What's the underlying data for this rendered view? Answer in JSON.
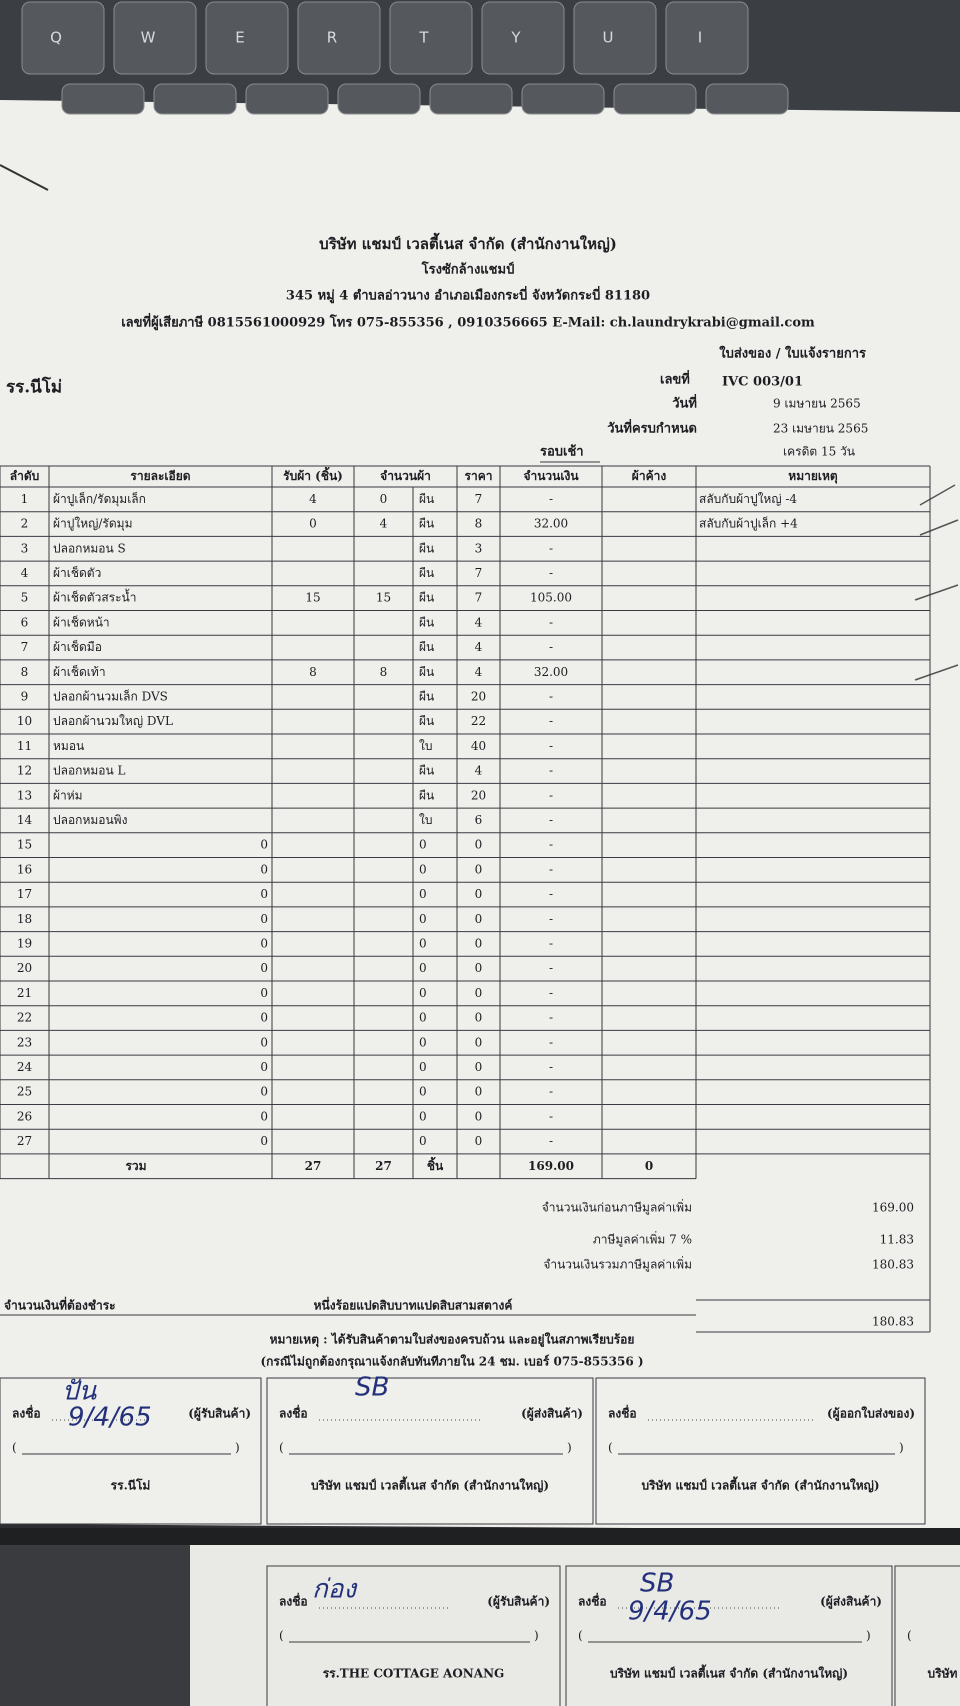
{
  "keyboard": [
    "Q",
    "W",
    "E",
    "R",
    "T",
    "Y",
    "U",
    "I"
  ],
  "header": {
    "company": "บริษัท แชมป์ เวลตี้เนส จำกัด (สำนักงานใหญ่)",
    "plant": "โรงซักล้างแชมป์",
    "address": "345 หมู่ 4 ตำบลอ่าวนาง อำเภอเมืองกระบี่ จังหวัดกระบี่ 81180",
    "contact": "เลขที่ผู้เสียภาษี 0815561000929 โทร 075-855356 , 0910356665 E-Mail: ch.laundrykrabi@gmail.com",
    "doc_type": "ใบส่งของ / ใบแจ้งรายการ"
  },
  "customer": "รร.นีโม่",
  "info": {
    "number_label": "เลขที่",
    "number": "IVC 003/01",
    "date_label": "วันที่",
    "date": "9 เมษายน 2565",
    "due_label": "วันที่ครบกำหนด",
    "due": "23 เมษายน 2565",
    "round": "รอบเช้า",
    "credit": "เครดิต 15 วัน"
  },
  "table": {
    "headers": [
      "ลำดับ",
      "รายละเอียด",
      "รับผ้า (ชิ้น)",
      "จำนวนผ้า",
      "ราคา",
      "จำนวนเงิน",
      "ผ้าค้าง",
      "หมายเหตุ"
    ],
    "rows": [
      [
        1,
        "ผ้าปูเล็ก/รัดมุมเล็ก",
        4,
        0,
        "ผืน",
        7,
        "-",
        null,
        "สลับกับผ้าปูใหญ่ -4"
      ],
      [
        2,
        "ผ้าปูใหญ่/รัดมุม",
        0,
        4,
        "ผืน",
        8,
        "32.00",
        null,
        "สลับกับผ้าปูเล็ก +4"
      ],
      [
        3,
        "ปลอกหมอน S",
        null,
        null,
        "ผืน",
        3,
        "-",
        null,
        null
      ],
      [
        4,
        "ผ้าเช็ดตัว",
        null,
        null,
        "ผืน",
        7,
        "-",
        null,
        null
      ],
      [
        5,
        "ผ้าเช็ดตัวสระน้ำ",
        15,
        15,
        "ผืน",
        7,
        "105.00",
        null,
        null
      ],
      [
        6,
        "ผ้าเช็ดหน้า",
        null,
        null,
        "ผืน",
        4,
        "-",
        null,
        null
      ],
      [
        7,
        "ผ้าเช็ดมือ",
        null,
        null,
        "ผืน",
        4,
        "-",
        null,
        null
      ],
      [
        8,
        "ผ้าเช็ดเท้า",
        8,
        8,
        "ผืน",
        4,
        "32.00",
        null,
        null
      ],
      [
        9,
        "ปลอกผ้านวมเล็ก DVS",
        null,
        null,
        "ผืน",
        20,
        "-",
        null,
        null
      ],
      [
        10,
        "ปลอกผ้านวมใหญ่ DVL",
        null,
        null,
        "ผืน",
        22,
        "-",
        null,
        null
      ],
      [
        11,
        "หมอน",
        null,
        null,
        "ใบ",
        40,
        "-",
        null,
        null
      ],
      [
        12,
        "ปลอกหมอน L",
        null,
        null,
        "ผืน",
        4,
        "-",
        null,
        null
      ],
      [
        13,
        "ผ้าห่ม",
        null,
        null,
        "ผืน",
        20,
        "-",
        null,
        null
      ],
      [
        14,
        "ปลอกหมอนพิง",
        null,
        null,
        "ใบ",
        6,
        "-",
        null,
        null
      ],
      [
        15,
        "0",
        null,
        null,
        "0",
        0,
        "-",
        null,
        null
      ],
      [
        16,
        "0",
        null,
        null,
        "0",
        0,
        "-",
        null,
        null
      ],
      [
        17,
        "0",
        null,
        null,
        "0",
        0,
        "-",
        null,
        null
      ],
      [
        18,
        "0",
        null,
        null,
        "0",
        0,
        "-",
        null,
        null
      ],
      [
        19,
        "0",
        null,
        null,
        "0",
        0,
        "-",
        null,
        null
      ],
      [
        20,
        "0",
        null,
        null,
        "0",
        0,
        "-",
        null,
        null
      ],
      [
        21,
        "0",
        null,
        null,
        "0",
        0,
        "-",
        null,
        null
      ],
      [
        22,
        "0",
        null,
        null,
        "0",
        0,
        "-",
        null,
        null
      ],
      [
        23,
        "0",
        null,
        null,
        "0",
        0,
        "-",
        null,
        null
      ],
      [
        24,
        "0",
        null,
        null,
        "0",
        0,
        "-",
        null,
        null
      ],
      [
        25,
        "0",
        null,
        null,
        "0",
        0,
        "-",
        null,
        null
      ],
      [
        26,
        "0",
        null,
        null,
        "0",
        0,
        "-",
        null,
        null
      ],
      [
        27,
        "0",
        null,
        null,
        "0",
        0,
        "-",
        null,
        null
      ]
    ],
    "total": {
      "label": "รวม",
      "cells": [
        27,
        27,
        "ชิ้น",
        null,
        "169.00",
        0
      ]
    }
  },
  "summary": [
    {
      "label": "จำนวนเงินก่อนภาษีมูลค่าเพิ่ม",
      "value": "169.00"
    },
    {
      "label": "ภาษีมูลค่าเพิ่ม 7 %",
      "value": "11.83"
    },
    {
      "label": "จำนวนเงินรวมภาษีมูลค่าเพิ่ม",
      "value": "180.83"
    }
  ],
  "payable": {
    "label": "จำนวนเงินที่ต้องชำระ",
    "words": "หนึ่งร้อยแปดสิบบาทแปดสิบสามสตางค์",
    "value": "180.83"
  },
  "notes": [
    "หมายเหตุ : ได้รับสินค้าตามใบส่งของครบถ้วน และอยู่ในสภาพเรียบร้อย",
    "(กรณีไม่ถูกต้องกรุณาแจ้งกลับทันทีภายใน 24 ชม. เบอร์ 075-855356 )"
  ],
  "signatures": [
    {
      "sign": "ลงชื่อ",
      "role": "(ผู้รับสินค้า)",
      "open": "(",
      "close": ")",
      "org": "รร.นีโม่",
      "handwriting": [
        "ปัน",
        "9/4/65"
      ]
    },
    {
      "sign": "ลงชื่อ",
      "role": "(ผู้ส่งสินค้า)",
      "open": "(",
      "close": ")",
      "org": "บริษัท แชมป์ เวลตี้เนส จำกัด (สำนักงานใหญ่)",
      "handwriting": [
        "SB"
      ]
    },
    {
      "sign": "ลงชื่อ",
      "role": "(ผู้ออกใบส่งของ)",
      "open": "(",
      "close": ")",
      "org": "บริษัท แชมป์ เวลตี้เนส จำกัด (สำนักงานใหญ่)"
    }
  ],
  "second_sheet": [
    {
      "sign": "ลงชื่อ",
      "role": "(ผู้รับสินค้า)",
      "open": "(",
      "close": ")",
      "org": "รร.THE COTTAGE AONANG",
      "handwriting": [
        "ก่อง"
      ]
    },
    {
      "sign": "ลงชื่อ",
      "role": "(ผู้ส่งสินค้า)",
      "open": "(",
      "close": ")",
      "org": "บริษัท แชมป์ เวลตี้เนส จำกัด (สำนักงานใหญ่)",
      "handwriting": [
        "SB",
        "9/4/65"
      ]
    },
    {
      "open": "(",
      "org": "บริษัท"
    }
  ]
}
